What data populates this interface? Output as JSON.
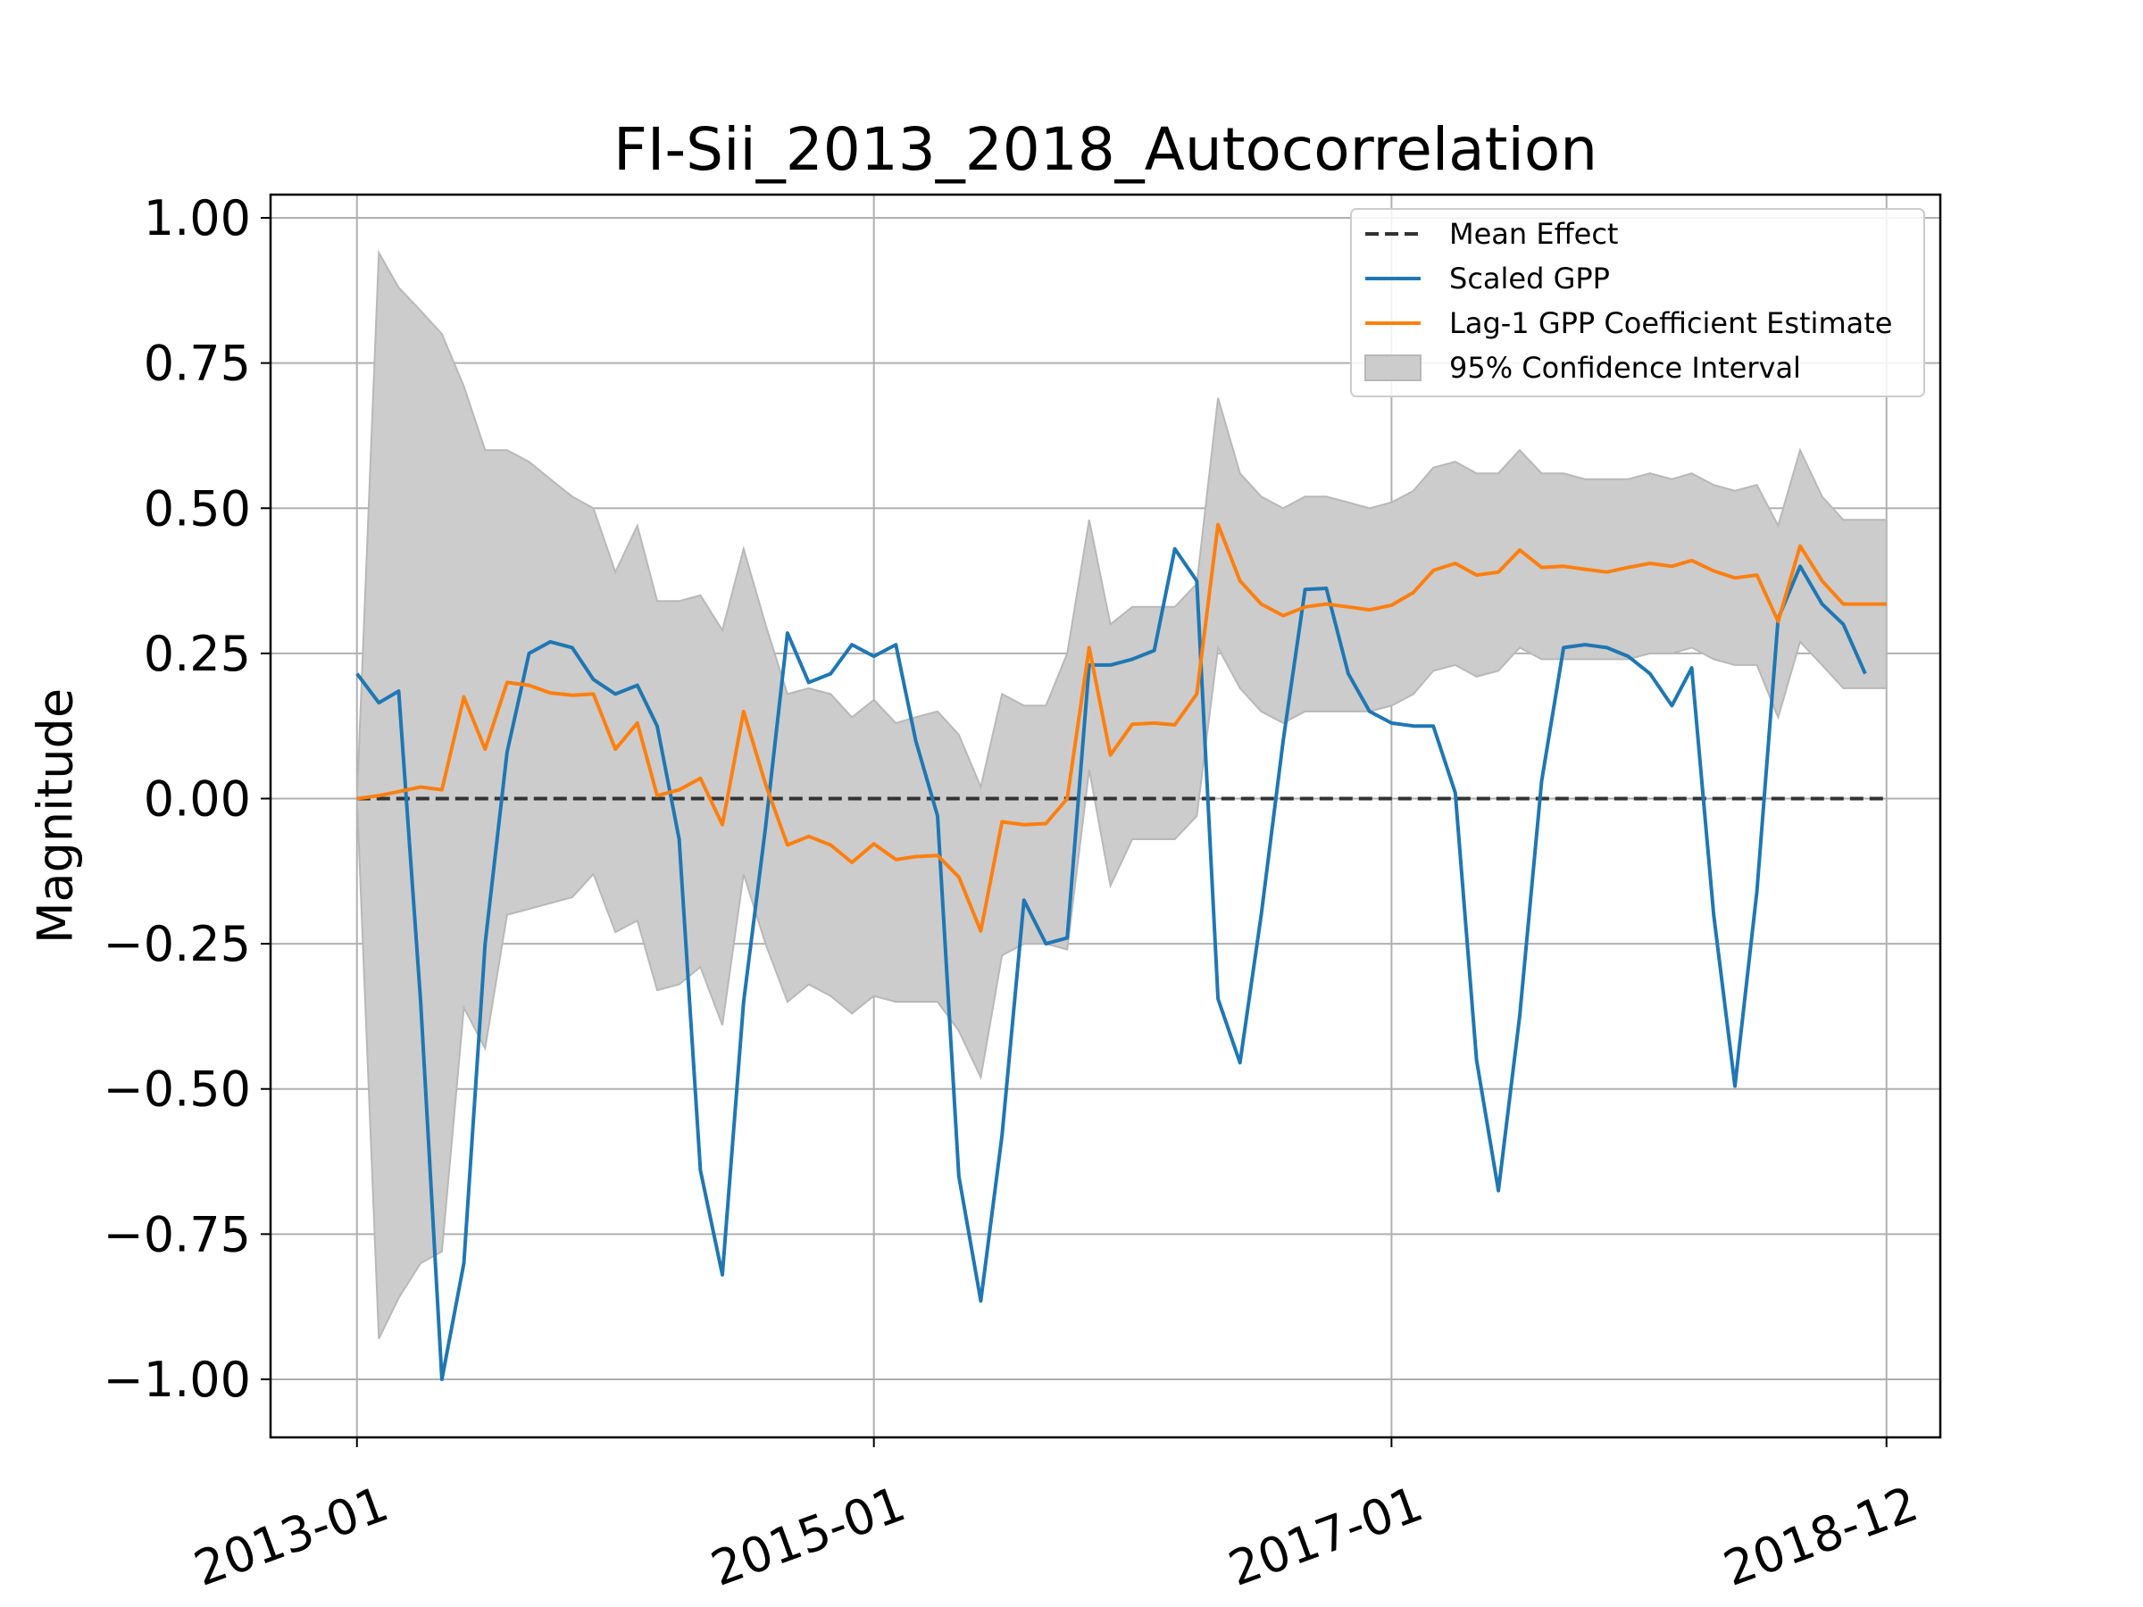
{
  "chart_data": {
    "type": "line",
    "title": "FI-Sii_2013_2018_Autocorrelation",
    "xlabel": "",
    "ylabel": "Magnitude",
    "ylim": [
      -1.1,
      1.04
    ],
    "xlim": [
      "2012-09-01",
      "2019-02-15"
    ],
    "grid": true,
    "legend_position": "top-right",
    "x_ticks": [
      "2013-01",
      "2015-01",
      "2017-01",
      "2018-12"
    ],
    "y_ticks": [
      "1.00",
      "0.75",
      "0.50",
      "0.25",
      "0.00",
      "−0.25",
      "−0.50",
      "−0.75",
      "−1.00"
    ],
    "y_tick_values": [
      1.0,
      0.75,
      0.5,
      0.25,
      0.0,
      -0.25,
      -0.5,
      -0.75,
      -1.0
    ],
    "series": [
      {
        "name": "Mean Effect",
        "color": "#333333",
        "style": "dashed",
        "x": [
          "2013-01-01",
          "2018-12-01"
        ],
        "values": [
          0.0,
          0.0
        ]
      },
      {
        "name": "Scaled GPP",
        "color": "#1f77b4",
        "style": "solid",
        "x": [
          "2013-01-01",
          "2013-02-01",
          "2013-03-01",
          "2013-04-01",
          "2013-05-01",
          "2013-06-01",
          "2013-07-01",
          "2013-08-01",
          "2013-09-01",
          "2013-10-01",
          "2013-11-01",
          "2013-12-01",
          "2014-01-01",
          "2014-02-01",
          "2014-03-01",
          "2014-04-01",
          "2014-05-01",
          "2014-06-01",
          "2014-07-01",
          "2014-08-01",
          "2014-09-01",
          "2014-10-01",
          "2014-11-01",
          "2014-12-01",
          "2015-01-01",
          "2015-02-01",
          "2015-03-01",
          "2015-04-01",
          "2015-05-01",
          "2015-06-01",
          "2015-07-01",
          "2015-08-01",
          "2015-09-01",
          "2015-10-01",
          "2015-11-01",
          "2015-12-01",
          "2016-01-01",
          "2016-02-01",
          "2016-03-01",
          "2016-04-01",
          "2016-05-01",
          "2016-06-01",
          "2016-07-01",
          "2016-08-01",
          "2016-09-01",
          "2016-10-01",
          "2016-11-01",
          "2016-12-01",
          "2017-01-01",
          "2017-02-01",
          "2017-03-01",
          "2017-04-01",
          "2017-05-01",
          "2017-06-01",
          "2017-07-01",
          "2017-08-01",
          "2017-09-01",
          "2017-10-01",
          "2017-11-01",
          "2017-12-01",
          "2018-01-01",
          "2018-02-01",
          "2018-03-01",
          "2018-04-01",
          "2018-05-01",
          "2018-06-01",
          "2018-07-01",
          "2018-08-01",
          "2018-09-01",
          "2018-10-01",
          "2018-11-01"
        ],
        "values": [
          0.215,
          0.165,
          0.185,
          -0.35,
          -1.0,
          -0.8,
          -0.25,
          0.08,
          0.25,
          0.27,
          0.26,
          0.205,
          0.18,
          0.195,
          0.125,
          -0.07,
          -0.64,
          -0.82,
          -0.35,
          -0.05,
          0.285,
          0.2,
          0.215,
          0.265,
          0.245,
          0.265,
          0.1,
          -0.03,
          -0.65,
          -0.865,
          -0.58,
          -0.175,
          -0.25,
          -0.24,
          0.23,
          0.23,
          0.24,
          0.255,
          0.43,
          0.375,
          -0.345,
          -0.455,
          -0.2,
          0.1,
          0.36,
          0.362,
          0.215,
          0.15,
          0.13,
          0.125,
          0.125,
          0.01,
          -0.45,
          -0.675,
          -0.375,
          0.03,
          0.26,
          0.265,
          0.26,
          0.245,
          0.215,
          0.16,
          0.225,
          -0.2,
          -0.495,
          -0.16,
          0.31,
          0.4,
          0.335,
          0.3,
          0.215
        ]
      },
      {
        "name": "Lag-1 GPP Coefficient Estimate",
        "color": "#ff7f0e",
        "style": "solid",
        "x": [
          "2013-01-01",
          "2013-02-01",
          "2013-03-01",
          "2013-04-01",
          "2013-05-01",
          "2013-06-01",
          "2013-07-01",
          "2013-08-01",
          "2013-09-01",
          "2013-10-01",
          "2013-11-01",
          "2013-12-01",
          "2014-01-01",
          "2014-02-01",
          "2014-03-01",
          "2014-04-01",
          "2014-05-01",
          "2014-06-01",
          "2014-07-01",
          "2014-08-01",
          "2014-09-01",
          "2014-10-01",
          "2014-11-01",
          "2014-12-01",
          "2015-01-01",
          "2015-02-01",
          "2015-03-01",
          "2015-04-01",
          "2015-05-01",
          "2015-06-01",
          "2015-07-01",
          "2015-08-01",
          "2015-09-01",
          "2015-10-01",
          "2015-11-01",
          "2015-12-01",
          "2016-01-01",
          "2016-02-01",
          "2016-03-01",
          "2016-04-01",
          "2016-05-01",
          "2016-06-01",
          "2016-07-01",
          "2016-08-01",
          "2016-09-01",
          "2016-10-01",
          "2016-11-01",
          "2016-12-01",
          "2017-01-01",
          "2017-02-01",
          "2017-03-01",
          "2017-04-01",
          "2017-05-01",
          "2017-06-01",
          "2017-07-01",
          "2017-08-01",
          "2017-09-01",
          "2017-10-01",
          "2017-11-01",
          "2017-12-01",
          "2018-01-01",
          "2018-02-01",
          "2018-03-01",
          "2018-04-01",
          "2018-05-01",
          "2018-06-01",
          "2018-07-01",
          "2018-08-01",
          "2018-09-01",
          "2018-10-01",
          "2018-11-01",
          "2018-12-01"
        ],
        "values": [
          0.0,
          0.005,
          0.012,
          0.02,
          0.015,
          0.175,
          0.085,
          0.2,
          0.195,
          0.182,
          0.178,
          0.18,
          0.085,
          0.13,
          0.005,
          0.015,
          0.035,
          -0.045,
          0.15,
          0.025,
          -0.08,
          -0.065,
          -0.08,
          -0.11,
          -0.078,
          -0.105,
          -0.1,
          -0.098,
          -0.135,
          -0.228,
          -0.04,
          -0.045,
          -0.043,
          0.0,
          0.26,
          0.075,
          0.128,
          0.13,
          0.127,
          0.18,
          0.472,
          0.375,
          0.335,
          0.315,
          0.33,
          0.335,
          0.33,
          0.325,
          0.333,
          0.355,
          0.393,
          0.405,
          0.385,
          0.39,
          0.428,
          0.398,
          0.4,
          0.395,
          0.39,
          0.398,
          0.405,
          0.4,
          0.41,
          0.392,
          0.38,
          0.385,
          0.305,
          0.435,
          0.375,
          0.335,
          0.335,
          0.335
        ]
      }
    ],
    "band": {
      "name": "95% Confidence Interval",
      "color": "#cccccc",
      "x": [
        "2013-01-01",
        "2013-02-01",
        "2013-03-01",
        "2013-04-01",
        "2013-05-01",
        "2013-06-01",
        "2013-07-01",
        "2013-08-01",
        "2013-09-01",
        "2013-10-01",
        "2013-11-01",
        "2013-12-01",
        "2014-01-01",
        "2014-02-01",
        "2014-03-01",
        "2014-04-01",
        "2014-05-01",
        "2014-06-01",
        "2014-07-01",
        "2014-08-01",
        "2014-09-01",
        "2014-10-01",
        "2014-11-01",
        "2014-12-01",
        "2015-01-01",
        "2015-02-01",
        "2015-03-01",
        "2015-04-01",
        "2015-05-01",
        "2015-06-01",
        "2015-07-01",
        "2015-08-01",
        "2015-09-01",
        "2015-10-01",
        "2015-11-01",
        "2015-12-01",
        "2016-01-01",
        "2016-02-01",
        "2016-03-01",
        "2016-04-01",
        "2016-05-01",
        "2016-06-01",
        "2016-07-01",
        "2016-08-01",
        "2016-09-01",
        "2016-10-01",
        "2016-11-01",
        "2016-12-01",
        "2017-01-01",
        "2017-02-01",
        "2017-03-01",
        "2017-04-01",
        "2017-05-01",
        "2017-06-01",
        "2017-07-01",
        "2017-08-01",
        "2017-09-01",
        "2017-10-01",
        "2017-11-01",
        "2017-12-01",
        "2018-01-01",
        "2018-02-01",
        "2018-03-01",
        "2018-04-01",
        "2018-05-01",
        "2018-06-01",
        "2018-07-01",
        "2018-08-01",
        "2018-09-01",
        "2018-10-01",
        "2018-11-01",
        "2018-12-01"
      ],
      "upper": [
        0.0,
        0.94,
        0.88,
        0.84,
        0.8,
        0.71,
        0.6,
        0.6,
        0.58,
        0.55,
        0.52,
        0.5,
        0.39,
        0.47,
        0.34,
        0.34,
        0.35,
        0.29,
        0.43,
        0.3,
        0.18,
        0.19,
        0.18,
        0.14,
        0.17,
        0.13,
        0.14,
        0.15,
        0.11,
        0.02,
        0.18,
        0.16,
        0.16,
        0.25,
        0.48,
        0.3,
        0.33,
        0.33,
        0.33,
        0.37,
        0.69,
        0.56,
        0.52,
        0.5,
        0.52,
        0.52,
        0.51,
        0.5,
        0.51,
        0.53,
        0.57,
        0.58,
        0.56,
        0.56,
        0.6,
        0.56,
        0.56,
        0.55,
        0.55,
        0.55,
        0.56,
        0.55,
        0.56,
        0.54,
        0.53,
        0.54,
        0.47,
        0.6,
        0.52,
        0.48,
        0.48,
        0.48
      ],
      "lower": [
        0.0,
        -0.93,
        -0.86,
        -0.8,
        -0.78,
        -0.36,
        -0.43,
        -0.2,
        -0.19,
        -0.18,
        -0.17,
        -0.13,
        -0.23,
        -0.21,
        -0.33,
        -0.32,
        -0.29,
        -0.39,
        -0.13,
        -0.25,
        -0.35,
        -0.32,
        -0.34,
        -0.37,
        -0.34,
        -0.35,
        -0.35,
        -0.35,
        -0.4,
        -0.48,
        -0.27,
        -0.25,
        -0.25,
        -0.26,
        0.05,
        -0.15,
        -0.07,
        -0.07,
        -0.07,
        -0.03,
        0.26,
        0.19,
        0.15,
        0.13,
        0.15,
        0.15,
        0.15,
        0.15,
        0.16,
        0.18,
        0.22,
        0.23,
        0.21,
        0.22,
        0.26,
        0.24,
        0.24,
        0.24,
        0.24,
        0.24,
        0.25,
        0.25,
        0.26,
        0.24,
        0.23,
        0.23,
        0.14,
        0.27,
        0.23,
        0.19,
        0.19,
        0.19
      ]
    }
  }
}
